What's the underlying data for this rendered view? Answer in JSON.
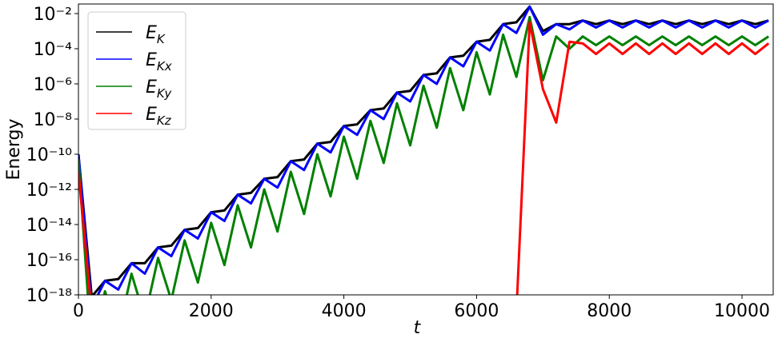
{
  "chart_data": {
    "type": "line",
    "xlabel": "t",
    "ylabel": "Energy",
    "log_y": true,
    "legend": "upper left",
    "x": [
      0,
      200,
      400,
      600,
      800,
      1000,
      1200,
      1400,
      1600,
      1800,
      2000,
      2200,
      2400,
      2600,
      2800,
      3000,
      3200,
      3400,
      3600,
      3800,
      4000,
      4200,
      4400,
      4600,
      4800,
      5000,
      5200,
      5400,
      5600,
      5800,
      6000,
      6200,
      6400,
      6600,
      6800,
      7000,
      7200,
      7400,
      7600,
      7800,
      8000,
      8200,
      8400,
      8600,
      8800,
      9000,
      9200,
      9400,
      9600,
      9800,
      10000,
      10200,
      10400
    ],
    "series": [
      {
        "name": "EK",
        "color": "#000000",
        "values": [
          1e-10,
          7.9e-19,
          6.3e-18,
          7.9e-18,
          6.3e-17,
          6.3e-17,
          5e-16,
          6.3e-16,
          5e-15,
          6.3e-15,
          5e-14,
          6.3e-14,
          5e-13,
          6.3e-13,
          4e-12,
          5e-12,
          4e-11,
          5e-11,
          4e-10,
          5e-10,
          4e-09,
          5e-09,
          3.2e-08,
          4e-08,
          3.2e-07,
          4e-07,
          3.2e-06,
          4e-06,
          3.2e-05,
          4e-05,
          0.00025,
          0.00032,
          0.0025,
          0.0032,
          0.025,
          0.001,
          0.0025,
          0.0025,
          0.004,
          0.0025,
          0.004,
          0.0025,
          0.004,
          0.0025,
          0.004,
          0.0025,
          0.004,
          0.0025,
          0.004,
          0.0025,
          0.004,
          0.0025,
          0.004
        ]
      },
      {
        "name": "EKx",
        "color": "#0000ff",
        "values": [
          1e-10,
          2e-19,
          6.3e-18,
          2e-18,
          6.3e-17,
          1.6e-17,
          5e-16,
          1.6e-16,
          5e-15,
          1.6e-15,
          5e-14,
          1.6e-14,
          5e-13,
          1.6e-13,
          4e-12,
          1.26e-12,
          4e-11,
          1.26e-11,
          4e-10,
          1.26e-10,
          4e-09,
          1.26e-09,
          3.2e-08,
          1e-08,
          3.2e-07,
          1e-07,
          3.2e-06,
          1e-06,
          3.2e-05,
          1e-05,
          0.00025,
          7.9e-05,
          0.0025,
          0.00079,
          0.025,
          0.00063,
          0.0025,
          0.00126,
          0.004,
          0.0016,
          0.004,
          0.0016,
          0.004,
          0.0016,
          0.004,
          0.0016,
          0.004,
          0.0016,
          0.004,
          0.0016,
          0.004,
          0.0016,
          0.004
        ]
      },
      {
        "name": "EKy",
        "color": "#008000",
        "values": [
          5e-11,
          6.3e-22,
          1.6e-18,
          6.3e-21,
          1.6e-17,
          5e-20,
          1.26e-16,
          5e-19,
          1.26e-15,
          5e-18,
          1.26e-14,
          5e-17,
          1.26e-13,
          5e-16,
          1e-12,
          4e-15,
          1e-11,
          4e-14,
          1e-10,
          4e-13,
          1e-09,
          4e-12,
          7.9e-09,
          3.2e-11,
          7.9e-08,
          3.2e-10,
          7.9e-07,
          3.2e-09,
          7.9e-06,
          3.2e-08,
          6.3e-05,
          2.5e-07,
          0.00063,
          2.5e-06,
          0.0063,
          1.6e-06,
          0.0005,
          0.0001,
          0.0005,
          0.00016,
          0.0005,
          0.00016,
          0.0005,
          0.00016,
          0.0005,
          0.00016,
          0.0005,
          0.00016,
          0.0005,
          0.00016,
          0.0005,
          0.00016,
          0.0005
        ]
      },
      {
        "name": "EKz",
        "color": "#ff0000",
        "values": [
          1e-11,
          1e-19,
          null,
          null,
          null,
          null,
          null,
          null,
          null,
          null,
          null,
          null,
          null,
          null,
          null,
          null,
          null,
          null,
          null,
          null,
          null,
          null,
          null,
          null,
          null,
          null,
          null,
          null,
          null,
          null,
          null,
          null,
          null,
          1e-19,
          0.0032,
          5e-07,
          6.3e-09,
          0.00025,
          0.0002,
          5e-05,
          0.0002,
          5e-05,
          0.0002,
          5e-05,
          0.0002,
          5e-05,
          0.0002,
          5e-05,
          0.0002,
          5e-05,
          0.0002,
          5e-05,
          0.0002
        ]
      }
    ],
    "xlim": [
      0,
      10470
    ],
    "xticks": [
      0,
      2000,
      4000,
      6000,
      8000,
      10000
    ],
    "ylim": [
      1e-18,
      0.035
    ],
    "yticks": [
      {
        "value": 1e-18,
        "label": "10⁻¹⁸"
      },
      {
        "value": 1e-16,
        "label": "10⁻¹⁶"
      },
      {
        "value": 1e-14,
        "label": "10⁻¹⁴"
      },
      {
        "value": 1e-12,
        "label": "10⁻¹²"
      },
      {
        "value": 1e-10,
        "label": "10⁻¹⁰"
      },
      {
        "value": 1e-08,
        "label": "10⁻⁸"
      },
      {
        "value": 1e-06,
        "label": "10⁻⁶"
      },
      {
        "value": 0.0001,
        "label": "10⁻⁴"
      },
      {
        "value": 0.01,
        "label": "10⁻²"
      }
    ]
  }
}
